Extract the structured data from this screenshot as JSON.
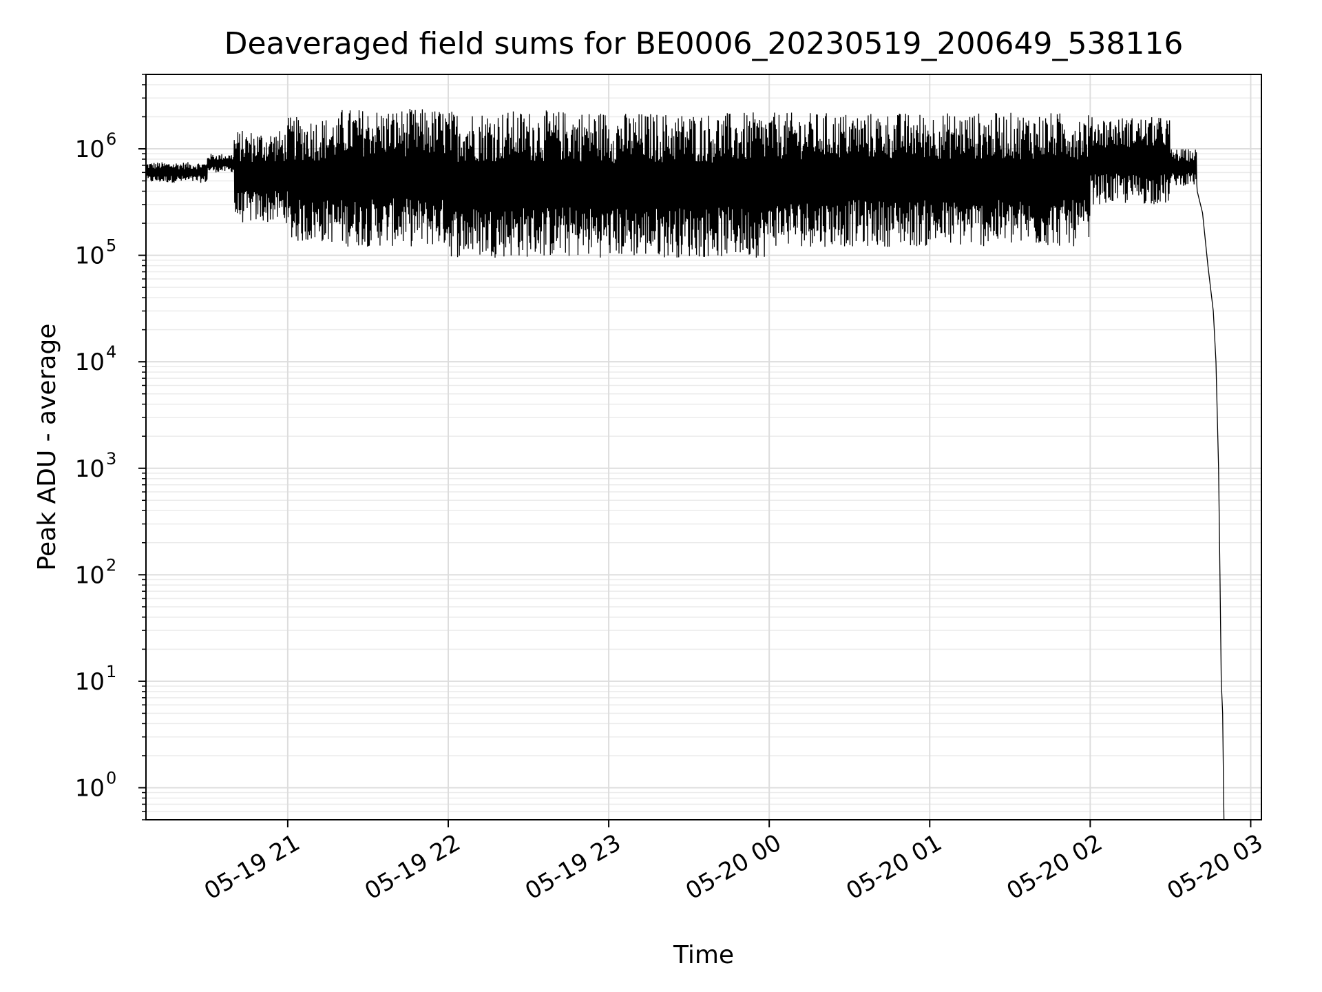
{
  "chart_data": {
    "type": "line",
    "title": "Deaveraged field sums for BE0006_20230519_200649_538116",
    "xlabel": "Time",
    "ylabel": "Peak ADU - average",
    "y_scale": "log",
    "ylim": [
      0.5,
      5000000
    ],
    "xlim": [
      "2023-05-19 20:07",
      "2023-05-20 03:04"
    ],
    "grid": true,
    "line_color": "#000000",
    "x_ticks": [
      {
        "value": "2023-05-19 21:00",
        "label": "05-19 21"
      },
      {
        "value": "2023-05-19 22:00",
        "label": "05-19 22"
      },
      {
        "value": "2023-05-19 23:00",
        "label": "05-19 23"
      },
      {
        "value": "2023-05-20 00:00",
        "label": "05-20 00"
      },
      {
        "value": "2023-05-20 01:00",
        "label": "05-20 01"
      },
      {
        "value": "2023-05-20 02:00",
        "label": "05-20 02"
      },
      {
        "value": "2023-05-20 03:00",
        "label": "05-20 03"
      }
    ],
    "y_ticks": [
      {
        "value": 1,
        "base": "10",
        "exp": "0"
      },
      {
        "value": 10,
        "base": "10",
        "exp": "1"
      },
      {
        "value": 100,
        "base": "10",
        "exp": "2"
      },
      {
        "value": 1000,
        "base": "10",
        "exp": "3"
      },
      {
        "value": 10000,
        "base": "10",
        "exp": "4"
      },
      {
        "value": 100000,
        "base": "10",
        "exp": "5"
      },
      {
        "value": 1000000,
        "base": "10",
        "exp": "6"
      }
    ],
    "series": [
      {
        "style": "oscillating_envelope",
        "segments": [
          {
            "x_start": "2023-05-19 20:07",
            "x_end": "2023-05-19 20:30",
            "low": 480000,
            "high": 750000
          },
          {
            "x_start": "2023-05-19 20:30",
            "x_end": "2023-05-19 20:40",
            "low": 600000,
            "high": 900000
          },
          {
            "x_start": "2023-05-19 20:40",
            "x_end": "2023-05-19 21:00",
            "low": 200000,
            "high": 1500000
          },
          {
            "x_start": "2023-05-19 21:00",
            "x_end": "2023-05-19 21:20",
            "low": 130000,
            "high": 2000000
          },
          {
            "x_start": "2023-05-19 21:20",
            "x_end": "2023-05-19 22:00",
            "low": 120000,
            "high": 2400000
          },
          {
            "x_start": "2023-05-19 22:00",
            "x_end": "2023-05-19 23:00",
            "low": 95000,
            "high": 2300000
          },
          {
            "x_start": "2023-05-19 23:00",
            "x_end": "2023-05-20 00:00",
            "low": 95000,
            "high": 2200000
          },
          {
            "x_start": "2023-05-20 00:00",
            "x_end": "2023-05-20 01:00",
            "low": 120000,
            "high": 2200000
          },
          {
            "x_start": "2023-05-20 01:00",
            "x_end": "2023-05-20 02:00",
            "low": 120000,
            "high": 2200000
          },
          {
            "x_start": "2023-05-20 02:00",
            "x_end": "2023-05-20 02:30",
            "low": 300000,
            "high": 2000000
          },
          {
            "x_start": "2023-05-20 02:30",
            "x_end": "2023-05-20 02:40",
            "low": 450000,
            "high": 1000000
          }
        ],
        "tail": [
          {
            "x": "2023-05-20 02:40",
            "y": 400000
          },
          {
            "x": "2023-05-20 02:42",
            "y": 250000
          },
          {
            "x": "2023-05-20 02:44",
            "y": 80000
          },
          {
            "x": "2023-05-20 02:46",
            "y": 30000
          },
          {
            "x": "2023-05-20 02:47",
            "y": 10000
          },
          {
            "x": "2023-05-20 02:48",
            "y": 1000
          },
          {
            "x": "2023-05-20 02:48.5",
            "y": 100
          },
          {
            "x": "2023-05-20 02:49",
            "y": 10
          },
          {
            "x": "2023-05-20 02:49.5",
            "y": 5
          },
          {
            "x": "2023-05-20 02:50",
            "y": 0.5
          }
        ]
      }
    ]
  }
}
